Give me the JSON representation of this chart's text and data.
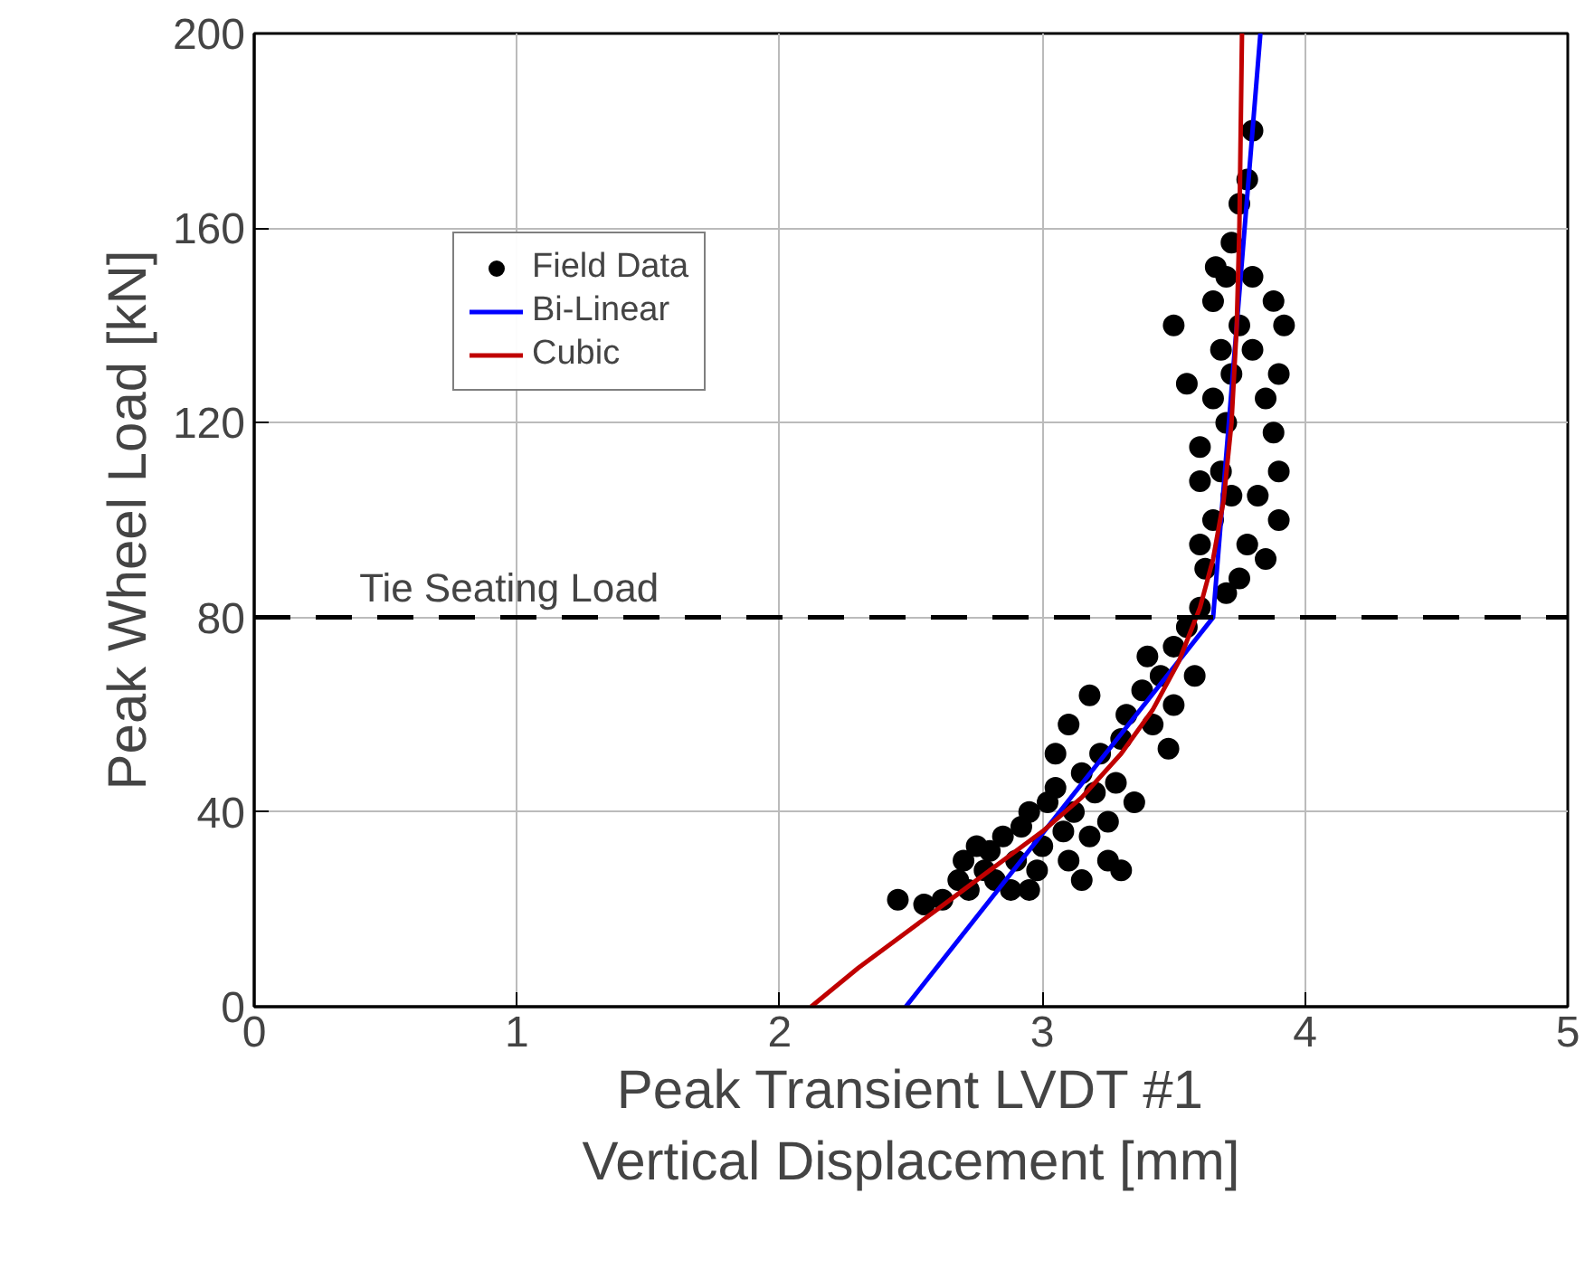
{
  "chart_data": {
    "type": "scatter",
    "xlabel": "Peak Transient LVDT #1\nVertical Displacement [mm]",
    "ylabel": "Peak Wheel Load [kN]",
    "xlim": [
      0,
      5
    ],
    "ylim": [
      0,
      200
    ],
    "xticks": [
      0,
      1,
      2,
      3,
      4,
      5
    ],
    "yticks": [
      0,
      40,
      80,
      120,
      160,
      200
    ],
    "grid": true,
    "legend": "top left",
    "series": [
      {
        "name": "Field Data",
        "marker": "circle",
        "color": "#000000",
        "x": [
          2.45,
          2.55,
          2.62,
          2.68,
          2.7,
          2.75,
          2.72,
          2.78,
          2.8,
          2.85,
          2.82,
          2.88,
          2.9,
          2.92,
          2.95,
          2.98,
          3.0,
          3.02,
          3.05,
          3.08,
          3.1,
          3.12,
          3.15,
          3.18,
          3.2,
          3.22,
          3.1,
          3.05,
          3.25,
          3.28,
          3.3,
          3.3,
          3.35,
          3.32,
          3.38,
          3.18,
          3.4,
          3.45,
          3.42,
          3.5,
          3.5,
          3.55,
          3.6,
          3.58,
          3.62,
          3.48,
          3.25,
          2.95,
          3.15,
          3.6,
          3.65,
          3.68,
          3.7,
          3.72,
          3.75,
          3.7,
          3.65,
          3.8,
          3.85,
          3.88,
          3.9,
          3.82,
          3.78,
          3.75,
          3.9,
          3.92,
          3.88,
          3.72,
          3.75,
          3.78,
          3.8,
          3.55,
          3.5,
          3.6,
          3.65,
          3.68,
          3.9,
          3.8,
          3.72,
          3.6,
          3.85,
          3.7,
          3.66
        ],
        "values": [
          22,
          21,
          22,
          26,
          30,
          33,
          24,
          28,
          32,
          35,
          26,
          24,
          30,
          37,
          40,
          28,
          33,
          42,
          45,
          36,
          30,
          40,
          48,
          35,
          44,
          52,
          58,
          52,
          38,
          46,
          55,
          28,
          42,
          60,
          65,
          64,
          72,
          68,
          58,
          74,
          62,
          78,
          82,
          68,
          90,
          53,
          30,
          24,
          26,
          95,
          100,
          110,
          120,
          130,
          140,
          150,
          145,
          135,
          125,
          118,
          110,
          105,
          95,
          88,
          100,
          140,
          145,
          157,
          165,
          170,
          180,
          128,
          140,
          115,
          125,
          135,
          130,
          150,
          105,
          108,
          92,
          85,
          152
        ]
      },
      {
        "name": "Bi-Linear",
        "type": "line",
        "marker": "none",
        "color": "#0000ff",
        "x": [
          2.48,
          3.65,
          3.83
        ],
        "values": [
          0,
          80,
          200
        ]
      },
      {
        "name": "Cubic",
        "type": "line",
        "marker": "none",
        "color": "#c00000",
        "x": [
          2.12,
          2.3,
          2.5,
          2.7,
          2.85,
          3.0,
          3.15,
          3.3,
          3.42,
          3.52,
          3.6,
          3.65,
          3.69,
          3.72,
          3.74,
          3.75,
          3.76
        ],
        "values": [
          0,
          8,
          16,
          24,
          30,
          36,
          43,
          52,
          61,
          71,
          82,
          92,
          104,
          120,
          140,
          160,
          200
        ]
      }
    ],
    "ref_lines": [
      {
        "axis": "y",
        "value": 80,
        "label": "Tie Seating Load",
        "color": "#000000",
        "line_style": "dashed"
      }
    ]
  }
}
